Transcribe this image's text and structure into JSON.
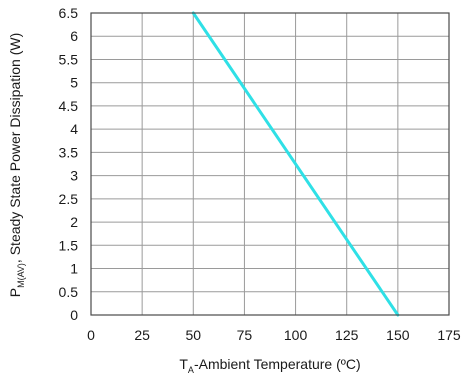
{
  "chart_data": {
    "type": "line",
    "title": "",
    "xlabel": {
      "prefix": "T",
      "subscript": "A",
      "text": "-Ambient Temperature (ºC)"
    },
    "ylabel": {
      "prefix": "P",
      "subscript": "M(AV)",
      "text": ", Steady State Power Dissipation (W)"
    },
    "xlim": [
      0,
      175
    ],
    "ylim": [
      0,
      6.5
    ],
    "x_ticks": [
      "0",
      "25",
      "50",
      "75",
      "100",
      "125",
      "150",
      "175"
    ],
    "y_ticks": [
      "0",
      "0.5",
      "1",
      "1.5",
      "2",
      "2.5",
      "3",
      "3.5",
      "4",
      "4.5",
      "5",
      "5.5",
      "6",
      "6.5"
    ],
    "grid": true,
    "series": [
      {
        "color": "#2fe0e6",
        "x": [
          50,
          150
        ],
        "y": [
          6.5,
          0
        ]
      }
    ]
  }
}
